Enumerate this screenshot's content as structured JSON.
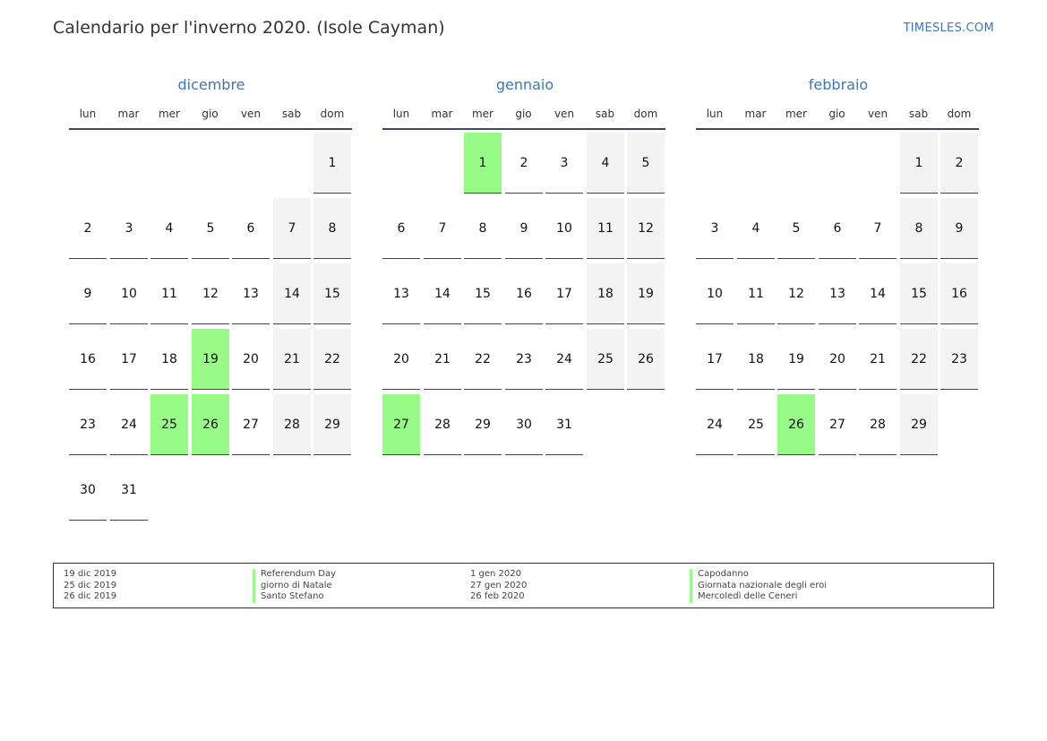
{
  "title": "Calendario per l'inverno 2020. (Isole Cayman)",
  "brand": "TIMESLES.COM",
  "weekdays": [
    "lun",
    "mar",
    "mer",
    "gio",
    "ven",
    "sab",
    "dom"
  ],
  "months": [
    {
      "name": "dicembre",
      "start_weekday": 6,
      "days": 31,
      "holidays": [
        19,
        25,
        26
      ]
    },
    {
      "name": "gennaio",
      "start_weekday": 2,
      "days": 31,
      "holidays": [
        1,
        27
      ]
    },
    {
      "name": "febbraio",
      "start_weekday": 5,
      "days": 29,
      "holidays": [
        26
      ]
    }
  ],
  "legend": {
    "left_dates": [
      "19 dic 2019",
      "25 dic 2019",
      "26 dic 2019"
    ],
    "left_names": [
      "Referendum Day",
      "giorno di Natale",
      "Santo Stefano"
    ],
    "right_dates": [
      "1 gen 2020",
      "27 gen 2020",
      "26 feb 2020"
    ],
    "right_names": [
      "Capodanno",
      "Giornata nazionale degli eroi",
      "Mercoledì delle Ceneri"
    ]
  },
  "colors": {
    "holiday": "#98fb88",
    "weekend": "#f3f3f3",
    "accent": "#3a78b5"
  }
}
